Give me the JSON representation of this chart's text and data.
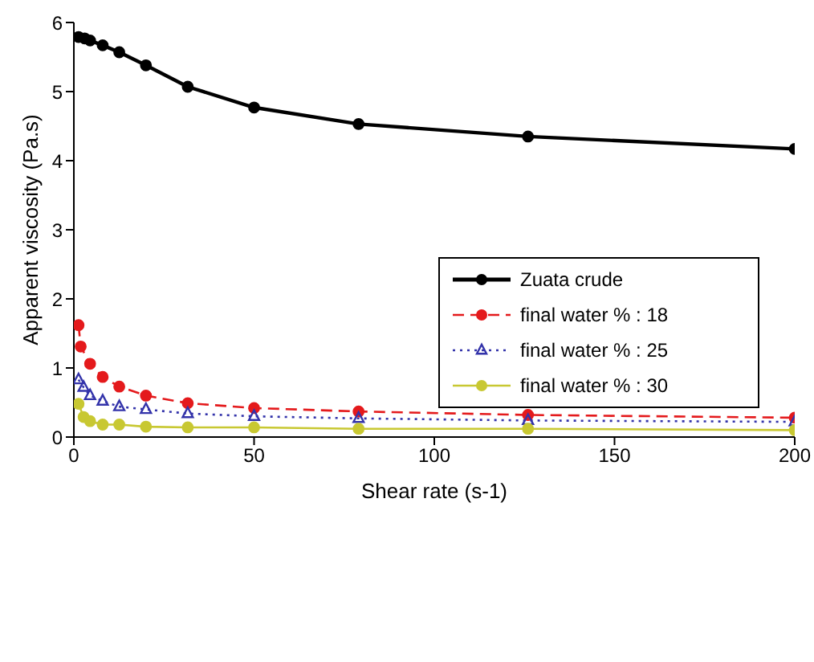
{
  "chart_data": {
    "type": "line",
    "xlabel": "Shear rate (s-1)",
    "ylabel": "Apparent viscosity (Pa.s)",
    "xlim": [
      0,
      200
    ],
    "xticks": [
      0,
      50,
      100,
      150,
      200
    ],
    "ylim": [
      0,
      6
    ],
    "yticks": [
      0,
      1,
      2,
      3,
      4,
      5,
      6
    ],
    "legend": "right",
    "series": [
      {
        "name": "Zuata crude",
        "color": "#000000",
        "marker": "circle",
        "line_style": "solid",
        "x": [
          1.3,
          3,
          4.5,
          8,
          12.6,
          20,
          31.6,
          50,
          79,
          126,
          200
        ],
        "values": [
          5.79,
          5.77,
          5.74,
          5.67,
          5.57,
          5.38,
          5.07,
          4.77,
          4.53,
          4.35,
          4.17
        ]
      },
      {
        "name": "final water % : 18",
        "color": "#e41a1c",
        "marker": "circle",
        "line_style": "dashed",
        "x": [
          1.3,
          1.9,
          4.5,
          8,
          12.6,
          20,
          31.6,
          50,
          79,
          126,
          200
        ],
        "values": [
          1.62,
          1.31,
          1.06,
          0.87,
          0.73,
          0.6,
          0.49,
          0.42,
          0.37,
          0.32,
          0.28
        ]
      },
      {
        "name": "final water % : 25",
        "color": "#3333aa",
        "marker": "triangle",
        "line_style": "dotted",
        "x": [
          1.3,
          2.7,
          4.5,
          8,
          12.6,
          20,
          31.6,
          50,
          79,
          126,
          200
        ],
        "values": [
          0.83,
          0.72,
          0.6,
          0.52,
          0.44,
          0.4,
          0.34,
          0.3,
          0.27,
          0.24,
          0.22
        ]
      },
      {
        "name": "final water % : 30",
        "color": "#c8c832",
        "marker": "circle",
        "line_style": "solid",
        "x": [
          1.3,
          2.7,
          4.5,
          8,
          12.6,
          20,
          31.6,
          50,
          79,
          126,
          200
        ],
        "values": [
          0.48,
          0.29,
          0.23,
          0.18,
          0.18,
          0.15,
          0.14,
          0.14,
          0.12,
          0.12,
          0.1
        ]
      }
    ]
  }
}
